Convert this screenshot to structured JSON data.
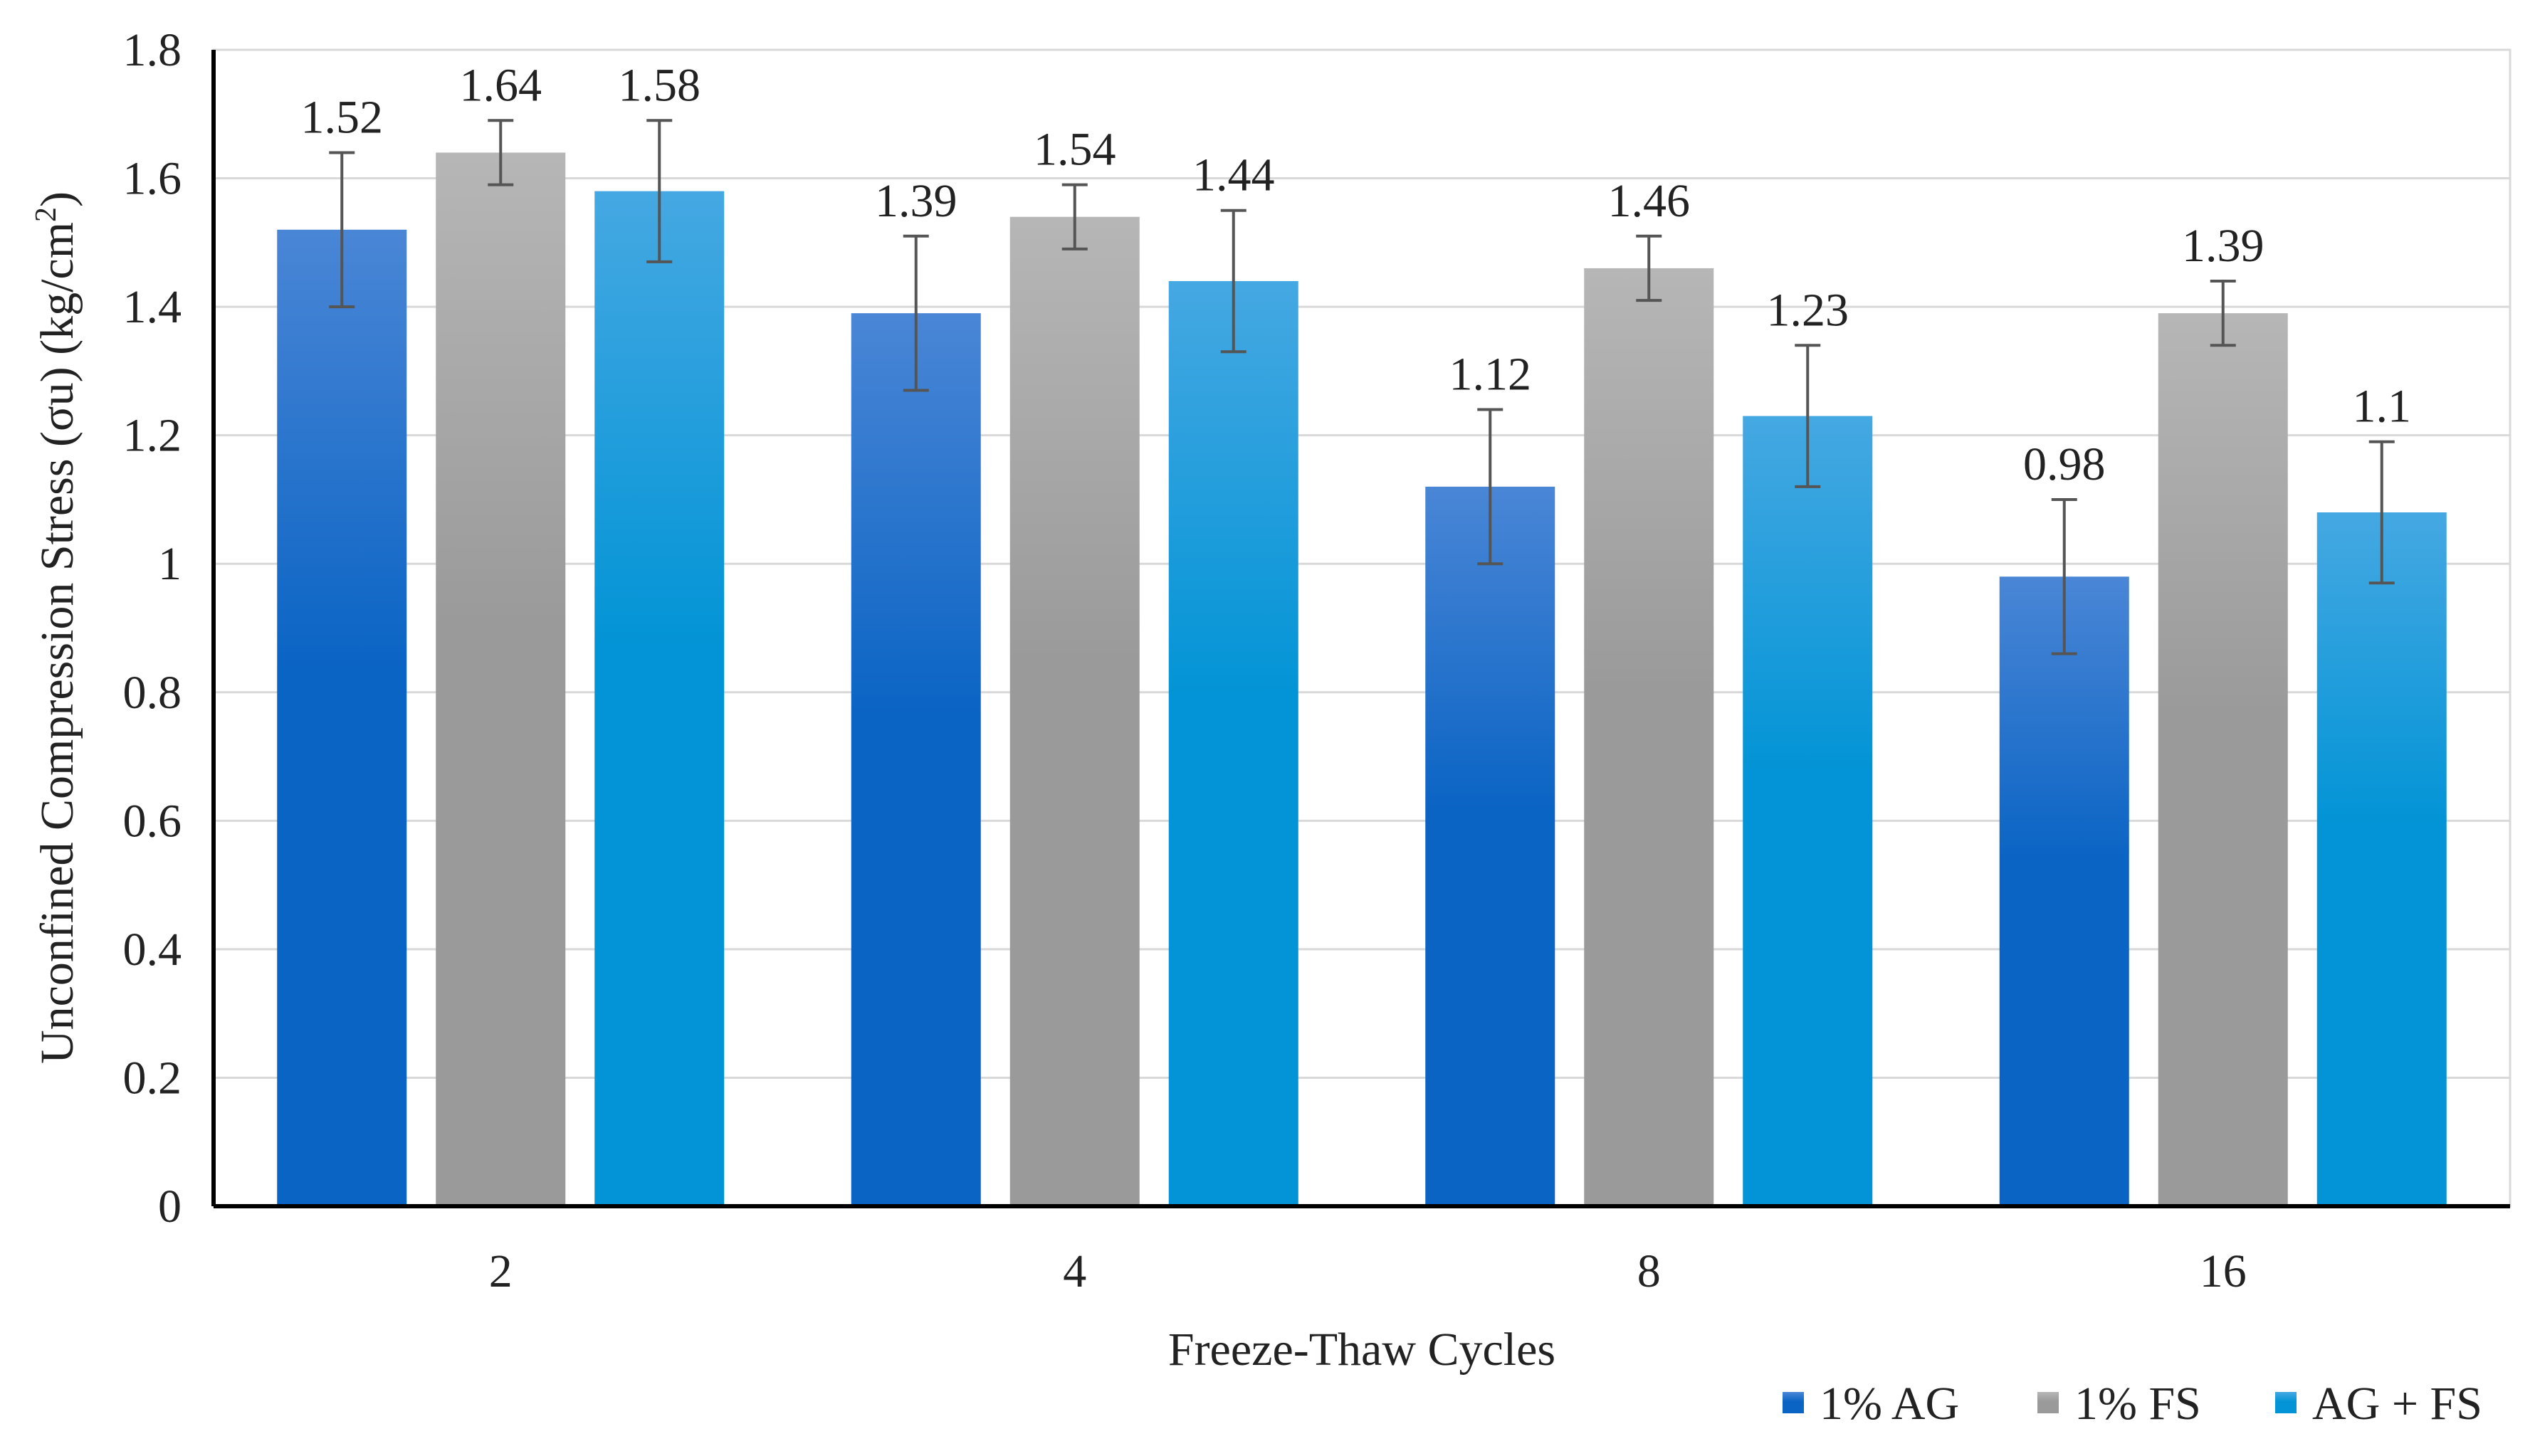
{
  "chart_data": {
    "type": "bar",
    "title": "",
    "xlabel": "Freeze-Thaw Cycles",
    "ylabel_main": "Unconfined Compression Stress (σu) (kg/cm",
    "ylabel_sup": "2",
    "ylabel_tail": ")",
    "ylim": [
      0,
      1.8
    ],
    "yticks": [
      "0",
      "0.2",
      "0.4",
      "0.6",
      "0.8",
      "1",
      "1.2",
      "1.4",
      "1.6",
      "1.8"
    ],
    "categories": [
      "2",
      "4",
      "8",
      "16"
    ],
    "grid": true,
    "legend_position": "bottom-right",
    "series": [
      {
        "name": "1% AG",
        "color": "#0a64c4",
        "color_light": "#4a86d6",
        "values": [
          1.52,
          1.39,
          1.12,
          0.98
        ],
        "errors": [
          0.12,
          0.12,
          0.12,
          0.12
        ],
        "labels": [
          "1.52",
          "1.39",
          "1.12",
          "0.98"
        ]
      },
      {
        "name": "1% FS",
        "color": "#9a9a9a",
        "color_light": "#b6b6b6",
        "values": [
          1.64,
          1.54,
          1.46,
          1.39
        ],
        "errors": [
          0.05,
          0.05,
          0.05,
          0.05
        ],
        "labels": [
          "1.64",
          "1.54",
          "1.46",
          "1.39"
        ]
      },
      {
        "name": "AG + FS",
        "color": "#0294d6",
        "color_light": "#45a8e2",
        "values": [
          1.58,
          1.44,
          1.23,
          1.08
        ],
        "errors": [
          0.11,
          0.11,
          0.11,
          0.11
        ],
        "labels": [
          "1.58",
          "1.44",
          "1.23",
          "1.1"
        ]
      }
    ]
  }
}
